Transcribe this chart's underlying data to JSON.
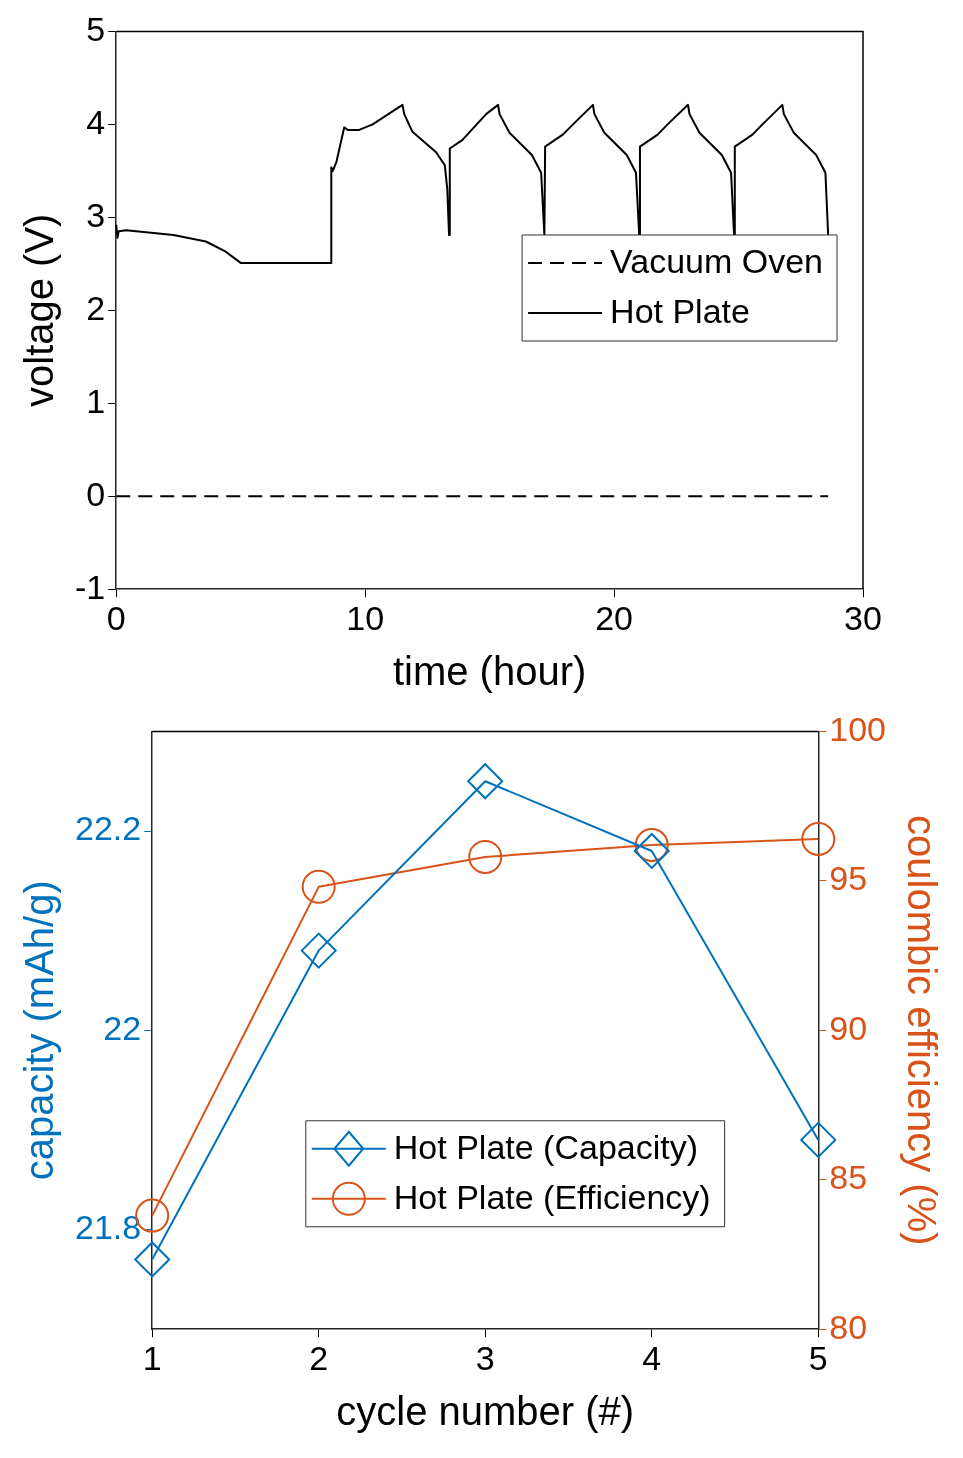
{
  "chart_data": [
    {
      "type": "line",
      "xlabel": "time (hour)",
      "ylabel": "voltage (V)",
      "xlim": [
        0,
        30
      ],
      "xticks": [
        0,
        10,
        20,
        30
      ],
      "ylim": [
        -1,
        5
      ],
      "yticks": [
        -1,
        0,
        1,
        2,
        3,
        4,
        5
      ],
      "grid": false,
      "legend": "right",
      "marker": "none",
      "series": [
        {
          "name": "Vacuum Oven",
          "color": "#000000",
          "line_style": "dashed",
          "x": [
            0,
            28.6
          ],
          "values": [
            0,
            0
          ]
        },
        {
          "name": "Hot Plate",
          "color": "#000000",
          "line_style": "solid",
          "x": [
            0,
            0.05,
            0.1,
            0.4,
            2.3,
            3.6,
            4.4,
            5.0,
            8.63,
            8.64,
            8.7,
            8.84,
            9.16,
            9.3,
            9.76,
            10.3,
            11.5,
            11.57,
            11.9,
            12.85,
            13.2,
            13.3,
            13.37,
            13.4,
            13.9,
            14.86,
            15.34,
            15.4,
            15.8,
            16.7,
            17.07,
            17.2,
            17.23,
            17.94,
            18.35,
            19.15,
            19.21,
            19.61,
            20.51,
            20.88,
            21.01,
            21.04,
            21.75,
            22.15,
            22.97,
            23.03,
            23.43,
            24.33,
            24.7,
            24.82,
            24.85,
            25.56,
            25.96,
            26.76,
            26.82,
            27.22,
            28.12,
            28.49,
            28.6
          ],
          "values": [
            2.92,
            2.78,
            2.85,
            2.86,
            2.81,
            2.74,
            2.63,
            2.51,
            2.51,
            3.54,
            3.5,
            3.59,
            3.97,
            3.94,
            3.94,
            4.0,
            4.21,
            4.11,
            3.92,
            3.7,
            3.56,
            3.3,
            2.81,
            3.74,
            3.83,
            4.11,
            4.21,
            4.11,
            3.91,
            3.67,
            3.48,
            2.81,
            3.76,
            3.89,
            4.0,
            4.21,
            4.11,
            3.91,
            3.67,
            3.48,
            2.81,
            3.76,
            3.89,
            4.0,
            4.21,
            4.11,
            3.91,
            3.67,
            3.48,
            2.81,
            3.76,
            3.89,
            4.0,
            4.21,
            4.11,
            3.91,
            3.67,
            3.48,
            2.81
          ]
        }
      ]
    },
    {
      "type": "line",
      "xlabel": "cycle number (#)",
      "ylabel": "capacity (mAh/g)",
      "y2label": "coulombic efficiency (%)",
      "xlim": [
        1,
        5
      ],
      "xticks": [
        1,
        2,
        3,
        4,
        5
      ],
      "ylim": [
        21.7,
        22.3
      ],
      "yticks": [
        21.8,
        22,
        22.2
      ],
      "y2lim": [
        80,
        100
      ],
      "y2ticks": [
        80,
        85,
        90,
        95,
        100
      ],
      "grid": false,
      "legend": "bottom",
      "series": [
        {
          "name": "Hot Plate (Capacity)",
          "color": "#0072bd",
          "marker": "diamond",
          "x": [
            1,
            2,
            3,
            4,
            5
          ],
          "values": [
            21.77,
            22.08,
            22.25,
            22.18,
            21.89
          ]
        },
        {
          "name": "Hot Plate (Efficiency)",
          "color": "#d95319",
          "marker": "circle",
          "axis": "y2",
          "x": [
            1,
            2,
            3,
            4,
            5
          ],
          "values": [
            83.8,
            94.8,
            95.8,
            96.2,
            96.4
          ]
        }
      ]
    }
  ]
}
